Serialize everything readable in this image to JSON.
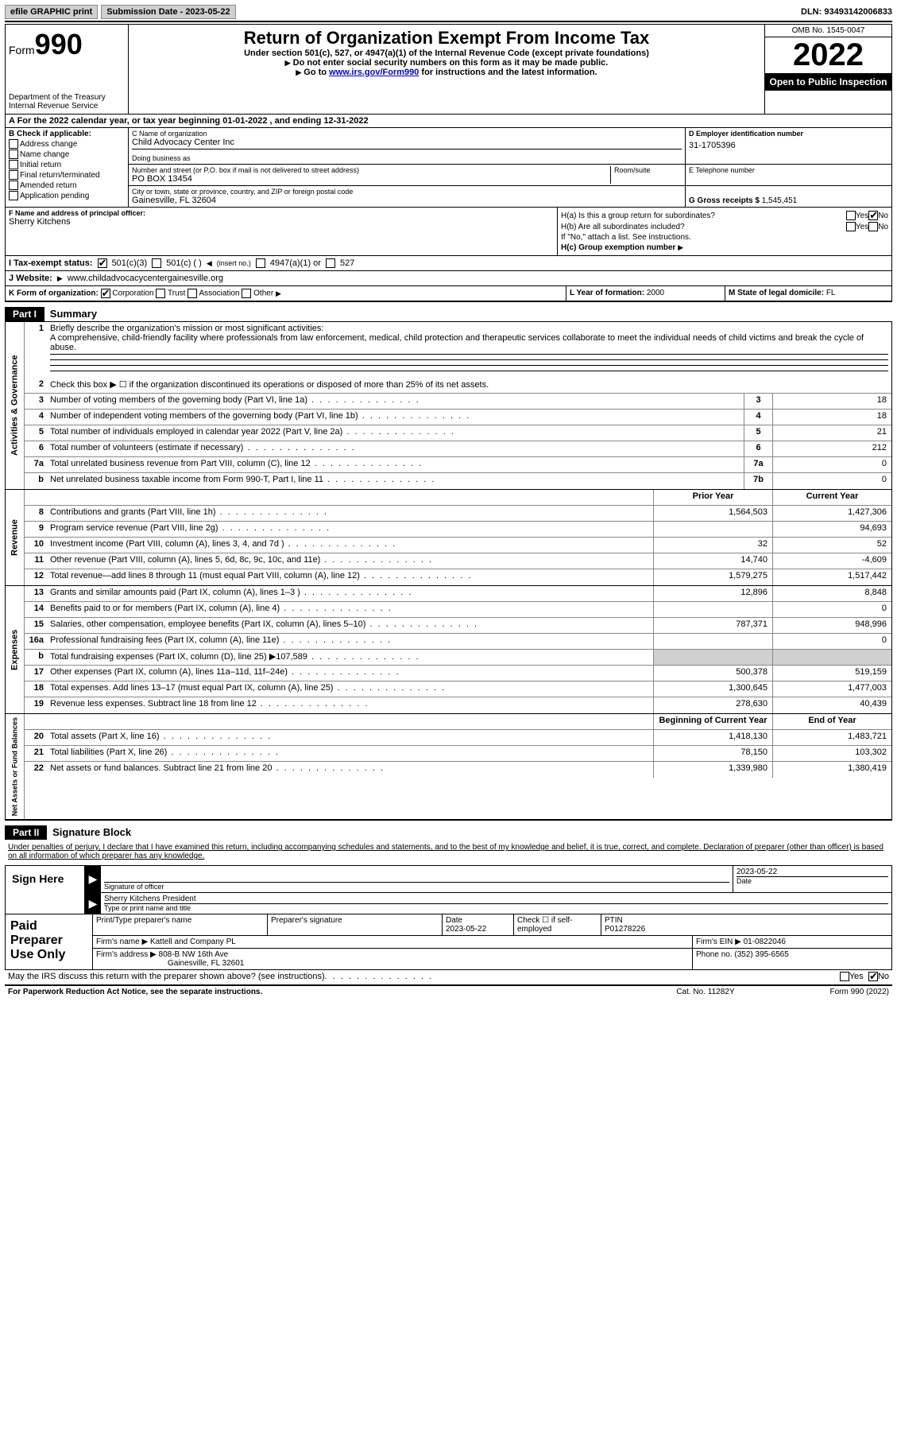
{
  "topbar": {
    "efile_label": "efile GRAPHIC print",
    "submission_label": "Submission Date - 2023-05-22",
    "dln_label": "DLN: 93493142006833"
  },
  "header": {
    "form_prefix": "Form",
    "form_number": "990",
    "title": "Return of Organization Exempt From Income Tax",
    "subtitle": "Under section 501(c), 527, or 4947(a)(1) of the Internal Revenue Code (except private foundations)",
    "instr1": "Do not enter social security numbers on this form as it may be made public.",
    "instr2_pre": "Go to ",
    "instr2_link": "www.irs.gov/Form990",
    "instr2_post": " for instructions and the latest information.",
    "dept": "Department of the Treasury",
    "irs": "Internal Revenue Service",
    "omb": "OMB No. 1545-0047",
    "year": "2022",
    "open_public": "Open to Public Inspection"
  },
  "row_a": {
    "prefix": "A For the 2022 calendar year, or tax year beginning ",
    "begin": "01-01-2022",
    "mid": " , and ending ",
    "end": "12-31-2022"
  },
  "section_b": {
    "label": "B Check if applicable:",
    "items": [
      "Address change",
      "Name change",
      "Initial return",
      "Final return/terminated",
      "Amended return",
      "Application pending"
    ]
  },
  "section_c": {
    "name_label": "C Name of organization",
    "name": "Child Advocacy Center Inc",
    "dba_label": "Doing business as",
    "addr_label": "Number and street (or P.O. box if mail is not delivered to street address)",
    "room_label": "Room/suite",
    "addr": "PO BOX 13454",
    "city_label": "City or town, state or province, country, and ZIP or foreign postal code",
    "city": "Gainesville, FL  32604"
  },
  "section_d": {
    "ein_label": "D Employer identification number",
    "ein": "31-1705396",
    "phone_label": "E Telephone number",
    "gross_label": "G Gross receipts $",
    "gross": "1,545,451"
  },
  "section_f": {
    "label": "F Name and address of principal officer:",
    "name": "Sherry Kitchens"
  },
  "section_h": {
    "a_label": "H(a)  Is this a group return for subordinates?",
    "b_label": "H(b)  Are all subordinates included?",
    "b_note": "If \"No,\" attach a list. See instructions.",
    "c_label": "H(c)  Group exemption number",
    "yes": "Yes",
    "no": "No"
  },
  "row_i": {
    "label": "I   Tax-exempt status:",
    "opt1": "501(c)(3)",
    "opt2": "501(c) (  )",
    "opt2_note": "(insert no.)",
    "opt3": "4947(a)(1) or",
    "opt4": "527"
  },
  "row_j": {
    "label": "J   Website:",
    "value": "www.childadvocacycentergainesville.org"
  },
  "row_k": {
    "label": "K Form of organization:",
    "opts": [
      "Corporation",
      "Trust",
      "Association",
      "Other"
    ],
    "l_label": "L Year of formation:",
    "l_value": "2000",
    "m_label": "M State of legal domicile:",
    "m_value": "FL"
  },
  "part1": {
    "header": "Part I",
    "title": "Summary",
    "q1_label": "Briefly describe the organization's mission or most significant activities:",
    "q1_text": "A comprehensive, child-friendly facility where professionals from law enforcement, medical, child protection and therapeutic services collaborate to meet the individual needs of child victims and break the cycle of abuse.",
    "q2": "Check this box ▶ ☐ if the organization discontinued its operations or disposed of more than 25% of its net assets.",
    "prior_year": "Prior Year",
    "current_year": "Current Year",
    "begin_year": "Beginning of Current Year",
    "end_year": "End of Year",
    "side_labels": [
      "Activities & Governance",
      "Revenue",
      "Expenses",
      "Net Assets or Fund Balances"
    ],
    "rows_gov": [
      {
        "n": "3",
        "t": "Number of voting members of the governing body (Part VI, line 1a)",
        "b": "3",
        "v": "18"
      },
      {
        "n": "4",
        "t": "Number of independent voting members of the governing body (Part VI, line 1b)",
        "b": "4",
        "v": "18"
      },
      {
        "n": "5",
        "t": "Total number of individuals employed in calendar year 2022 (Part V, line 2a)",
        "b": "5",
        "v": "21"
      },
      {
        "n": "6",
        "t": "Total number of volunteers (estimate if necessary)",
        "b": "6",
        "v": "212"
      },
      {
        "n": "7a",
        "t": "Total unrelated business revenue from Part VIII, column (C), line 12",
        "b": "7a",
        "v": "0"
      },
      {
        "n": "b",
        "t": "Net unrelated business taxable income from Form 990-T, Part I, line 11",
        "b": "7b",
        "v": "0"
      }
    ],
    "rows_rev": [
      {
        "n": "8",
        "t": "Contributions and grants (Part VIII, line 1h)",
        "p": "1,564,503",
        "c": "1,427,306"
      },
      {
        "n": "9",
        "t": "Program service revenue (Part VIII, line 2g)",
        "p": "",
        "c": "94,693"
      },
      {
        "n": "10",
        "t": "Investment income (Part VIII, column (A), lines 3, 4, and 7d )",
        "p": "32",
        "c": "52"
      },
      {
        "n": "11",
        "t": "Other revenue (Part VIII, column (A), lines 5, 6d, 8c, 9c, 10c, and 11e)",
        "p": "14,740",
        "c": "-4,609"
      },
      {
        "n": "12",
        "t": "Total revenue—add lines 8 through 11 (must equal Part VIII, column (A), line 12)",
        "p": "1,579,275",
        "c": "1,517,442"
      }
    ],
    "rows_exp": [
      {
        "n": "13",
        "t": "Grants and similar amounts paid (Part IX, column (A), lines 1–3 )",
        "p": "12,896",
        "c": "8,848"
      },
      {
        "n": "14",
        "t": "Benefits paid to or for members (Part IX, column (A), line 4)",
        "p": "",
        "c": "0"
      },
      {
        "n": "15",
        "t": "Salaries, other compensation, employee benefits (Part IX, column (A), lines 5–10)",
        "p": "787,371",
        "c": "948,996"
      },
      {
        "n": "16a",
        "t": "Professional fundraising fees (Part IX, column (A), line 11e)",
        "p": "",
        "c": "0"
      },
      {
        "n": "b",
        "t": "Total fundraising expenses (Part IX, column (D), line 25) ▶107,589",
        "p": "",
        "c": "",
        "shaded": true
      },
      {
        "n": "17",
        "t": "Other expenses (Part IX, column (A), lines 11a–11d, 11f–24e)",
        "p": "500,378",
        "c": "519,159"
      },
      {
        "n": "18",
        "t": "Total expenses. Add lines 13–17 (must equal Part IX, column (A), line 25)",
        "p": "1,300,645",
        "c": "1,477,003"
      },
      {
        "n": "19",
        "t": "Revenue less expenses. Subtract line 18 from line 12",
        "p": "278,630",
        "c": "40,439"
      }
    ],
    "rows_net": [
      {
        "n": "20",
        "t": "Total assets (Part X, line 16)",
        "p": "1,418,130",
        "c": "1,483,721"
      },
      {
        "n": "21",
        "t": "Total liabilities (Part X, line 26)",
        "p": "78,150",
        "c": "103,302"
      },
      {
        "n": "22",
        "t": "Net assets or fund balances. Subtract line 21 from line 20",
        "p": "1,339,980",
        "c": "1,380,419"
      }
    ]
  },
  "part2": {
    "header": "Part II",
    "title": "Signature Block",
    "declaration": "Under penalties of perjury, I declare that I have examined this return, including accompanying schedules and statements, and to the best of my knowledge and belief, it is true, correct, and complete. Declaration of preparer (other than officer) is based on all information of which preparer has any knowledge.",
    "sign_here": "Sign Here",
    "sig_officer_label": "Signature of officer",
    "sig_date": "2023-05-22",
    "date_label": "Date",
    "name_title": "Sherry Kitchens  President",
    "name_title_label": "Type or print name and title"
  },
  "preparer": {
    "title": "Paid Preparer Use Only",
    "print_name_label": "Print/Type preparer's name",
    "sig_label": "Preparer's signature",
    "date_label": "Date",
    "date": "2023-05-22",
    "check_label": "Check ☐ if self-employed",
    "ptin_label": "PTIN",
    "ptin": "P01278226",
    "firm_name_label": "Firm's name   ▶",
    "firm_name": "Kattell and Company PL",
    "firm_ein_label": "Firm's EIN ▶",
    "firm_ein": "01-0822046",
    "firm_addr_label": "Firm's address ▶",
    "firm_addr": "808-B NW 16th Ave",
    "firm_city": "Gainesville, FL  32601",
    "phone_label": "Phone no.",
    "phone": "(352) 395-6565"
  },
  "bottom": {
    "discuss": "May the IRS discuss this return with the preparer shown above? (see instructions)",
    "yes": "Yes",
    "no": "No"
  },
  "footer": {
    "left": "For Paperwork Reduction Act Notice, see the separate instructions.",
    "center": "Cat. No. 11282Y",
    "right": "Form 990 (2022)"
  }
}
